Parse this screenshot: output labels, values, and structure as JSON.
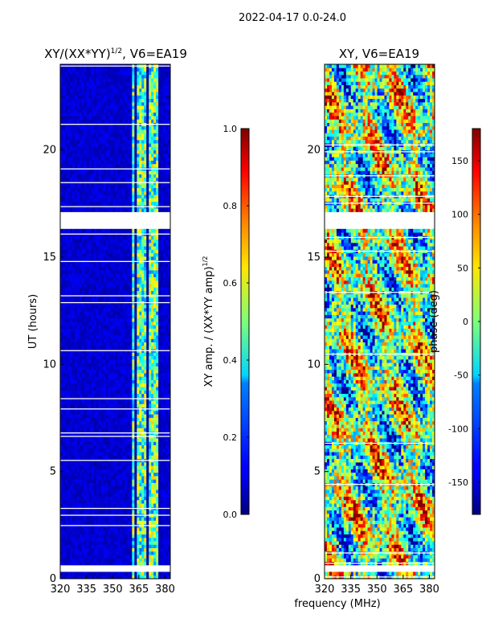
{
  "figure": {
    "suptitle": "2022-04-17 0.0-24.0",
    "common_xlabel": "frequency (MHz)"
  },
  "chart_data": [
    {
      "type": "heatmap",
      "title_prefix": "XY/(XX*YY)",
      "title_exp": "1/2",
      "title_suffix": ", V6=EA19",
      "xlabel": "frequency (MHz)",
      "ylabel": "UT (hours)",
      "xlim": [
        320,
        383
      ],
      "ylim": [
        0,
        24
      ],
      "xticks": [
        "320",
        "335",
        "350",
        "365",
        "380"
      ],
      "xtick_values": [
        320,
        335,
        350,
        365,
        380
      ],
      "yticks": [
        "0",
        "5",
        "10",
        "15",
        "20"
      ],
      "ytick_values": [
        0,
        5,
        10,
        15,
        20
      ],
      "colormap": "jet",
      "colorbar": {
        "label_main": "XY amp. / (XX*YY amp)",
        "label_exp": "1/2",
        "range": [
          0.0,
          1.0
        ],
        "ticks": [
          "0.0",
          "0.2",
          "0.4",
          "0.6",
          "0.8",
          "1.0"
        ],
        "tick_values": [
          0.0,
          0.2,
          0.4,
          0.6,
          0.8,
          1.0
        ]
      },
      "flagged_gap_hours": [
        [
          0.4,
          0.6
        ],
        [
          16.3,
          17.1
        ]
      ],
      "bright_channel_band_MHz": [
        361,
        378
      ],
      "typical_background_value": 0.08,
      "typical_band_value": 0.45
    },
    {
      "type": "heatmap",
      "title": "XY, V6=EA19",
      "xlabel": "frequency (MHz)",
      "ylabel": "",
      "xlim": [
        320,
        383
      ],
      "ylim": [
        0,
        24
      ],
      "xticks": [
        "320",
        "335",
        "350",
        "365",
        "380"
      ],
      "xtick_values": [
        320,
        335,
        350,
        365,
        380
      ],
      "yticks": [
        "0",
        "5",
        "10",
        "15",
        "20"
      ],
      "ytick_values": [
        0,
        5,
        10,
        15,
        20
      ],
      "colormap": "jet",
      "colorbar": {
        "label": "phase (deg)",
        "range": [
          -180,
          180
        ],
        "ticks": [
          "-150",
          "-100",
          "-50",
          "0",
          "50",
          "100",
          "150"
        ],
        "tick_values": [
          -150,
          -100,
          -50,
          0,
          50,
          100,
          150
        ]
      },
      "flagged_gap_hours": [
        [
          0.4,
          0.6
        ],
        [
          16.3,
          17.1
        ]
      ]
    }
  ],
  "colors": {
    "jet_low": "#00007f",
    "jet_high": "#7f0000",
    "background": "#ffffff"
  }
}
